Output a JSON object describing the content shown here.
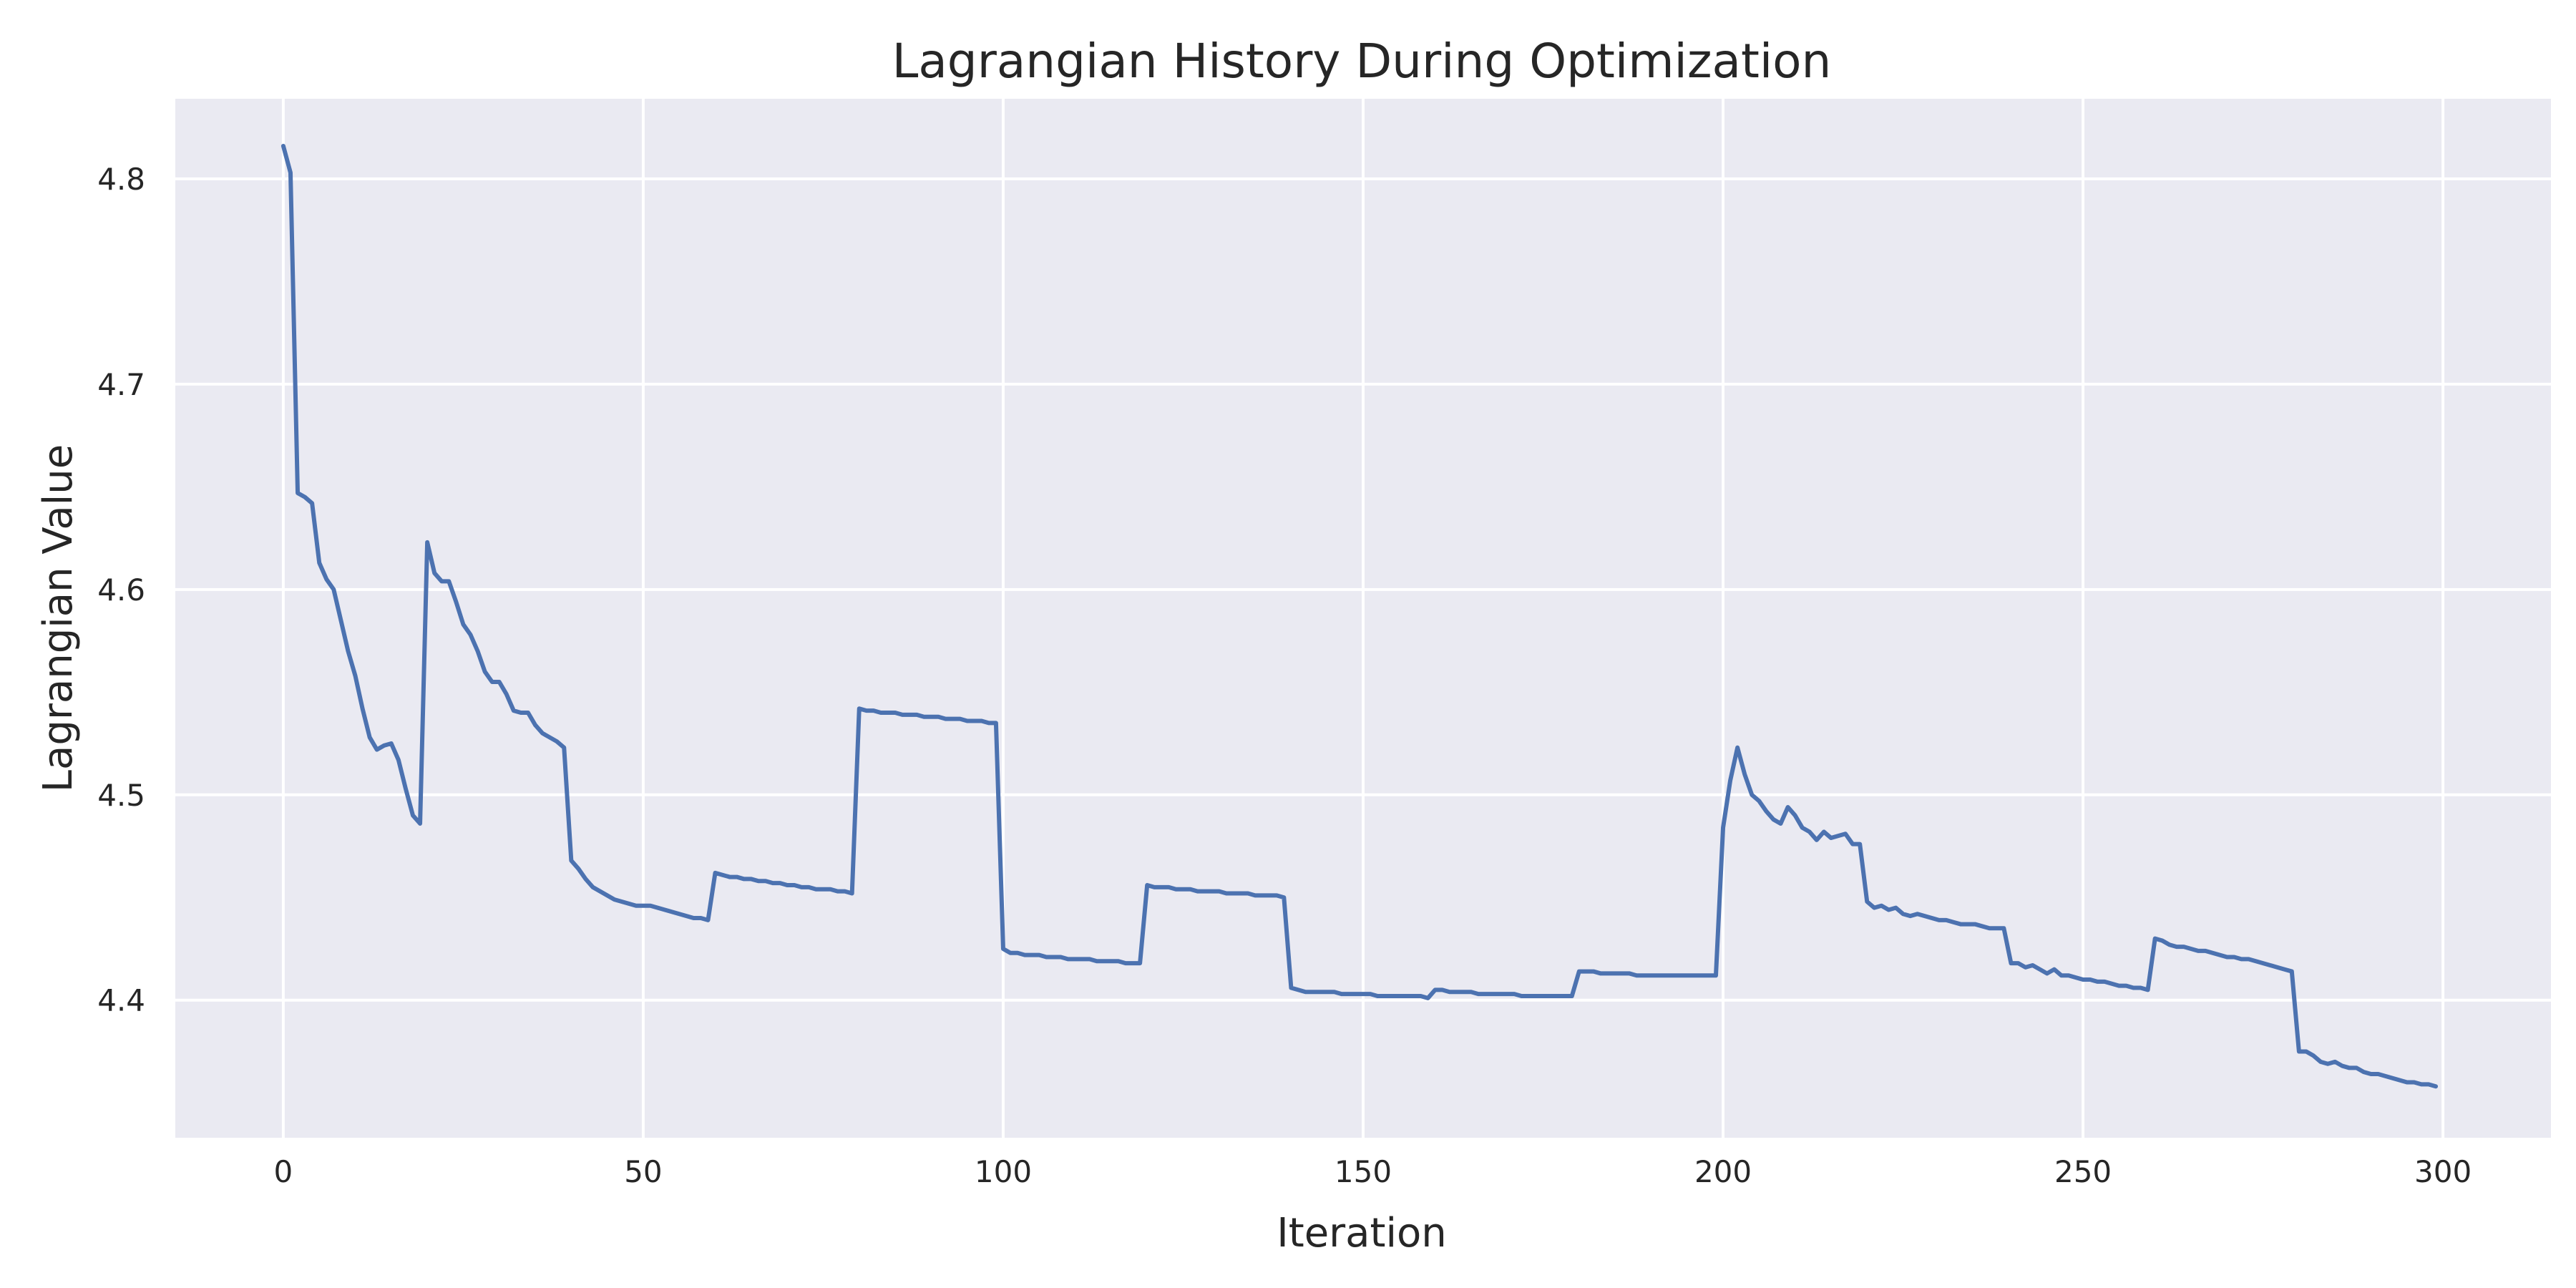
{
  "chart_data": {
    "type": "line",
    "title": "Lagrangian History During Optimization",
    "xlabel": "Iteration",
    "ylabel": "Lagrangian Value",
    "xlim": [
      -15,
      315
    ],
    "ylim": [
      4.333,
      4.839
    ],
    "xticks": [
      0,
      50,
      100,
      150,
      200,
      250,
      300
    ],
    "yticks": [
      4.4,
      4.5,
      4.6,
      4.7,
      4.8
    ],
    "ytick_labels": [
      "4.4",
      "4.5",
      "4.6",
      "4.7",
      "4.8"
    ],
    "grid": true,
    "legend": "none",
    "colors": {
      "plot_background": "#eaeaf2",
      "grid": "#ffffff",
      "line": "#4c72b0"
    },
    "series": [
      {
        "x": [
          0,
          1,
          2,
          3,
          4,
          5,
          6,
          7,
          8,
          9,
          10,
          11,
          12,
          13,
          14,
          15,
          16,
          17,
          18,
          19,
          20,
          21,
          22,
          23,
          24,
          25,
          26,
          27,
          28,
          29,
          30,
          31,
          32,
          33,
          34,
          35,
          36,
          37,
          38,
          39,
          40,
          41,
          42,
          43,
          44,
          45,
          46,
          47,
          48,
          49,
          50,
          51,
          52,
          53,
          54,
          55,
          56,
          57,
          58,
          59,
          60,
          61,
          62,
          63,
          64,
          65,
          66,
          67,
          68,
          69,
          70,
          71,
          72,
          73,
          74,
          75,
          76,
          77,
          78,
          79,
          80,
          81,
          82,
          83,
          84,
          85,
          86,
          87,
          88,
          89,
          90,
          91,
          92,
          93,
          94,
          95,
          96,
          97,
          98,
          99,
          100,
          101,
          102,
          103,
          104,
          105,
          106,
          107,
          108,
          109,
          110,
          111,
          112,
          113,
          114,
          115,
          116,
          117,
          118,
          119,
          120,
          121,
          122,
          123,
          124,
          125,
          126,
          127,
          128,
          129,
          130,
          131,
          132,
          133,
          134,
          135,
          136,
          137,
          138,
          139,
          140,
          141,
          142,
          143,
          144,
          145,
          146,
          147,
          148,
          149,
          150,
          151,
          152,
          153,
          154,
          155,
          156,
          157,
          158,
          159,
          160,
          161,
          162,
          163,
          164,
          165,
          166,
          167,
          168,
          169,
          170,
          171,
          172,
          173,
          174,
          175,
          176,
          177,
          178,
          179,
          180,
          181,
          182,
          183,
          184,
          185,
          186,
          187,
          188,
          189,
          190,
          191,
          192,
          193,
          194,
          195,
          196,
          197,
          198,
          199,
          200,
          201,
          202,
          203,
          204,
          205,
          206,
          207,
          208,
          209,
          210,
          211,
          212,
          213,
          214,
          215,
          216,
          217,
          218,
          219,
          220,
          221,
          222,
          223,
          224,
          225,
          226,
          227,
          228,
          229,
          230,
          231,
          232,
          233,
          234,
          235,
          236,
          237,
          238,
          239,
          240,
          241,
          242,
          243,
          244,
          245,
          246,
          247,
          248,
          249,
          250,
          251,
          252,
          253,
          254,
          255,
          256,
          257,
          258,
          259,
          260,
          261,
          262,
          263,
          264,
          265,
          266,
          267,
          268,
          269,
          270,
          271,
          272,
          273,
          274,
          275,
          276,
          277,
          278,
          279,
          280,
          281,
          282,
          283,
          284,
          285,
          286,
          287,
          288,
          289,
          290,
          291,
          292,
          293,
          294,
          295,
          296,
          297,
          298,
          299
        ],
        "y": [
          4.816,
          4.803,
          4.647,
          4.645,
          4.642,
          4.613,
          4.605,
          4.6,
          4.585,
          4.57,
          4.558,
          4.542,
          4.528,
          4.522,
          4.524,
          4.525,
          4.517,
          4.503,
          4.49,
          4.486,
          4.623,
          4.608,
          4.604,
          4.604,
          4.594,
          4.583,
          4.578,
          4.57,
          4.56,
          4.555,
          4.555,
          4.549,
          4.541,
          4.54,
          4.54,
          4.534,
          4.53,
          4.528,
          4.526,
          4.523,
          4.468,
          4.464,
          4.459,
          4.455,
          4.453,
          4.451,
          4.449,
          4.448,
          4.447,
          4.446,
          4.446,
          4.446,
          4.445,
          4.444,
          4.443,
          4.442,
          4.441,
          4.44,
          4.44,
          4.439,
          4.462,
          4.461,
          4.46,
          4.46,
          4.459,
          4.459,
          4.458,
          4.458,
          4.457,
          4.457,
          4.456,
          4.456,
          4.455,
          4.455,
          4.454,
          4.454,
          4.454,
          4.453,
          4.453,
          4.452,
          4.542,
          4.541,
          4.541,
          4.54,
          4.54,
          4.54,
          4.539,
          4.539,
          4.539,
          4.538,
          4.538,
          4.538,
          4.537,
          4.537,
          4.537,
          4.536,
          4.536,
          4.536,
          4.535,
          4.535,
          4.425,
          4.423,
          4.423,
          4.422,
          4.422,
          4.422,
          4.421,
          4.421,
          4.421,
          4.42,
          4.42,
          4.42,
          4.42,
          4.419,
          4.419,
          4.419,
          4.419,
          4.418,
          4.418,
          4.418,
          4.456,
          4.455,
          4.455,
          4.455,
          4.454,
          4.454,
          4.454,
          4.453,
          4.453,
          4.453,
          4.453,
          4.452,
          4.452,
          4.452,
          4.452,
          4.451,
          4.451,
          4.451,
          4.451,
          4.45,
          4.406,
          4.405,
          4.404,
          4.404,
          4.404,
          4.404,
          4.404,
          4.403,
          4.403,
          4.403,
          4.403,
          4.403,
          4.402,
          4.402,
          4.402,
          4.402,
          4.402,
          4.402,
          4.402,
          4.401,
          4.405,
          4.405,
          4.404,
          4.404,
          4.404,
          4.404,
          4.403,
          4.403,
          4.403,
          4.403,
          4.403,
          4.403,
          4.402,
          4.402,
          4.402,
          4.402,
          4.402,
          4.402,
          4.402,
          4.402,
          4.414,
          4.414,
          4.414,
          4.413,
          4.413,
          4.413,
          4.413,
          4.413,
          4.412,
          4.412,
          4.412,
          4.412,
          4.412,
          4.412,
          4.412,
          4.412,
          4.412,
          4.412,
          4.412,
          4.412,
          4.484,
          4.507,
          4.523,
          4.51,
          4.5,
          4.497,
          4.492,
          4.488,
          4.486,
          4.494,
          4.49,
          4.484,
          4.482,
          4.478,
          4.482,
          4.479,
          4.48,
          4.481,
          4.476,
          4.476,
          4.448,
          4.445,
          4.446,
          4.444,
          4.445,
          4.442,
          4.441,
          4.442,
          4.441,
          4.44,
          4.439,
          4.439,
          4.438,
          4.437,
          4.437,
          4.437,
          4.436,
          4.435,
          4.435,
          4.435,
          4.418,
          4.418,
          4.416,
          4.417,
          4.415,
          4.413,
          4.415,
          4.412,
          4.412,
          4.411,
          4.41,
          4.41,
          4.409,
          4.409,
          4.408,
          4.407,
          4.407,
          4.406,
          4.406,
          4.405,
          4.43,
          4.429,
          4.427,
          4.426,
          4.426,
          4.425,
          4.424,
          4.424,
          4.423,
          4.422,
          4.421,
          4.421,
          4.42,
          4.42,
          4.419,
          4.418,
          4.417,
          4.416,
          4.415,
          4.414,
          4.375,
          4.375,
          4.373,
          4.37,
          4.369,
          4.37,
          4.368,
          4.367,
          4.367,
          4.365,
          4.364,
          4.364,
          4.363,
          4.362,
          4.361,
          4.36,
          4.36,
          4.359,
          4.359,
          4.358
        ]
      }
    ]
  }
}
